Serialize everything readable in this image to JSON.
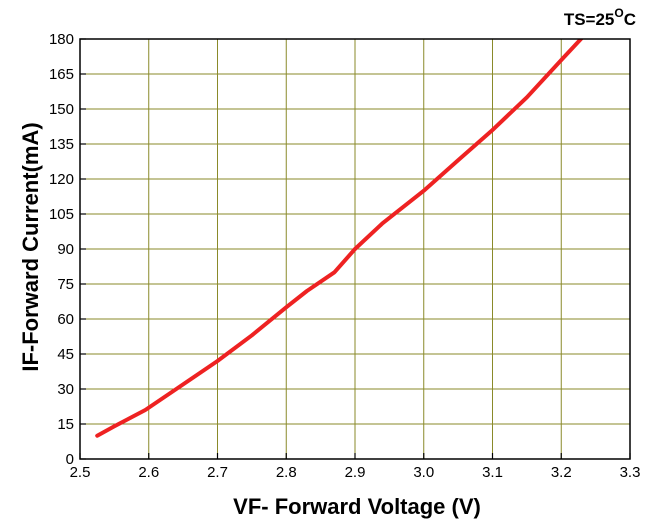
{
  "chart_data": {
    "type": "line",
    "xlabel": "VF- Forward Voltage  (V)",
    "ylabel": "IF-Forward Current(mA)",
    "annotation": {
      "prefix": "TS=25",
      "degree": "O",
      "unit": "C"
    },
    "xlim": [
      2.5,
      3.3
    ],
    "ylim": [
      0,
      180
    ],
    "x_ticks": [
      "2.5",
      "2.6",
      "2.7",
      "2.8",
      "2.9",
      "3.0",
      "3.1",
      "3.2",
      "3.3"
    ],
    "y_ticks": [
      "0",
      "15",
      "30",
      "45",
      "60",
      "75",
      "90",
      "105",
      "120",
      "135",
      "150",
      "165",
      "180"
    ],
    "grid": true,
    "line_color": "#ee2222",
    "grid_color": "#8a8a2a",
    "series": [
      {
        "x": [
          2.525,
          2.55,
          2.595,
          2.64,
          2.7,
          2.75,
          2.8,
          2.83,
          2.87,
          2.9,
          2.94,
          3.0,
          3.05,
          3.1,
          3.15,
          3.2,
          3.235
        ],
        "y": [
          10,
          14,
          21,
          30,
          42,
          53,
          65,
          72,
          80,
          90,
          101,
          115,
          128,
          141,
          155,
          171,
          182
        ]
      }
    ]
  }
}
